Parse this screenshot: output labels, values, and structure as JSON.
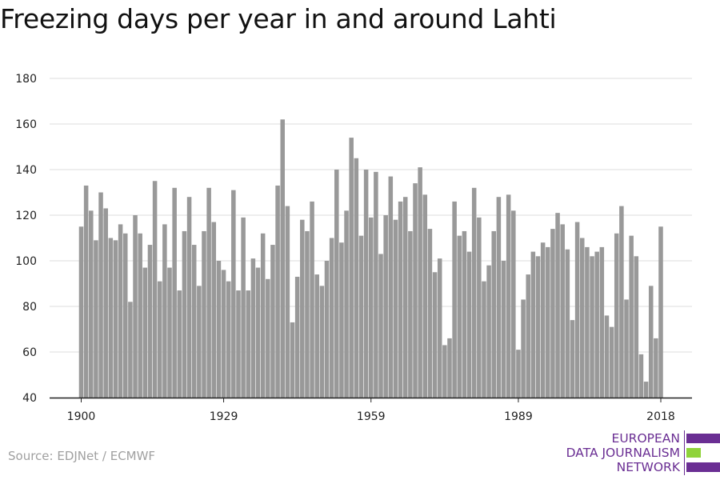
{
  "title": "Freezing days per year in and around Lahti",
  "source": "Source: EDJNet / ECMWF",
  "logo": {
    "lines": [
      "EUROPEAN",
      "DATA JOURNALISM",
      "NETWORK"
    ],
    "colors": [
      "#6a2e93",
      "#8fd33a",
      "#6a2e93"
    ]
  },
  "colors": {
    "bar": "#999999",
    "grid": "#dcdcdc",
    "axis": "#222222"
  },
  "chart_data": {
    "type": "bar",
    "title": "Freezing days per year in and around Lahti",
    "xlabel": "",
    "ylabel": "",
    "ylim": [
      40,
      180
    ],
    "yticks": [
      40,
      60,
      80,
      100,
      120,
      140,
      160,
      180
    ],
    "xticks": [
      1900,
      1929,
      1959,
      1989,
      2018
    ],
    "grid": true,
    "categories": [
      1900,
      1901,
      1902,
      1903,
      1904,
      1905,
      1906,
      1907,
      1908,
      1909,
      1910,
      1911,
      1912,
      1913,
      1914,
      1915,
      1916,
      1917,
      1918,
      1919,
      1920,
      1921,
      1922,
      1923,
      1924,
      1925,
      1926,
      1927,
      1928,
      1929,
      1930,
      1931,
      1932,
      1933,
      1934,
      1935,
      1936,
      1937,
      1938,
      1939,
      1940,
      1941,
      1942,
      1943,
      1944,
      1945,
      1946,
      1947,
      1948,
      1949,
      1950,
      1951,
      1952,
      1953,
      1954,
      1955,
      1956,
      1957,
      1958,
      1959,
      1960,
      1961,
      1962,
      1963,
      1964,
      1965,
      1966,
      1967,
      1968,
      1969,
      1970,
      1971,
      1972,
      1973,
      1974,
      1975,
      1976,
      1977,
      1978,
      1979,
      1980,
      1981,
      1982,
      1983,
      1984,
      1985,
      1986,
      1987,
      1988,
      1989,
      1990,
      1991,
      1992,
      1993,
      1994,
      1995,
      1996,
      1997,
      1998,
      1999,
      2000,
      2001,
      2002,
      2003,
      2004,
      2005,
      2006,
      2007,
      2008,
      2009,
      2010,
      2011,
      2012,
      2013,
      2014,
      2015,
      2016,
      2017,
      2018
    ],
    "values": [
      115,
      133,
      122,
      109,
      130,
      123,
      110,
      109,
      116,
      112,
      82,
      120,
      112,
      97,
      107,
      135,
      91,
      116,
      97,
      132,
      87,
      113,
      128,
      107,
      89,
      113,
      132,
      117,
      100,
      96,
      91,
      131,
      87,
      119,
      87,
      101,
      97,
      112,
      92,
      107,
      133,
      162,
      124,
      73,
      93,
      118,
      113,
      126,
      94,
      89,
      100,
      110,
      140,
      108,
      122,
      154,
      145,
      111,
      140,
      119,
      139,
      103,
      120,
      137,
      118,
      126,
      128,
      113,
      134,
      141,
      129,
      114,
      95,
      101,
      63,
      66,
      126,
      111,
      113,
      104,
      132,
      119,
      91,
      98,
      113,
      128,
      100,
      129,
      122,
      61,
      83,
      94,
      104,
      102,
      108,
      106,
      114,
      121,
      116,
      105,
      74,
      117,
      110,
      106,
      102,
      104,
      106,
      76,
      71,
      112,
      124,
      83,
      111,
      102,
      59,
      47,
      89,
      66,
      115
    ]
  }
}
